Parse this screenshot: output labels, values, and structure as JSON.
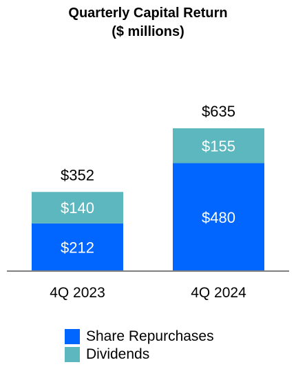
{
  "chart_data": {
    "type": "bar",
    "stacked": true,
    "title": "Quarterly Capital Return",
    "subtitle": "($ millions)",
    "categories": [
      "4Q 2023",
      "4Q 2024"
    ],
    "series": [
      {
        "name": "Share Repurchases",
        "color": "#0066FF",
        "values": [
          212,
          480
        ],
        "labels": [
          "$212",
          "$480"
        ]
      },
      {
        "name": "Dividends",
        "color": "#5DB7BE",
        "values": [
          140,
          155
        ],
        "labels": [
          "$140",
          "$155"
        ]
      }
    ],
    "totals": [
      352,
      635
    ],
    "total_labels": [
      "$352",
      "$635"
    ],
    "ylim": [
      0,
      635
    ],
    "grid": false,
    "legend_position": "bottom"
  }
}
